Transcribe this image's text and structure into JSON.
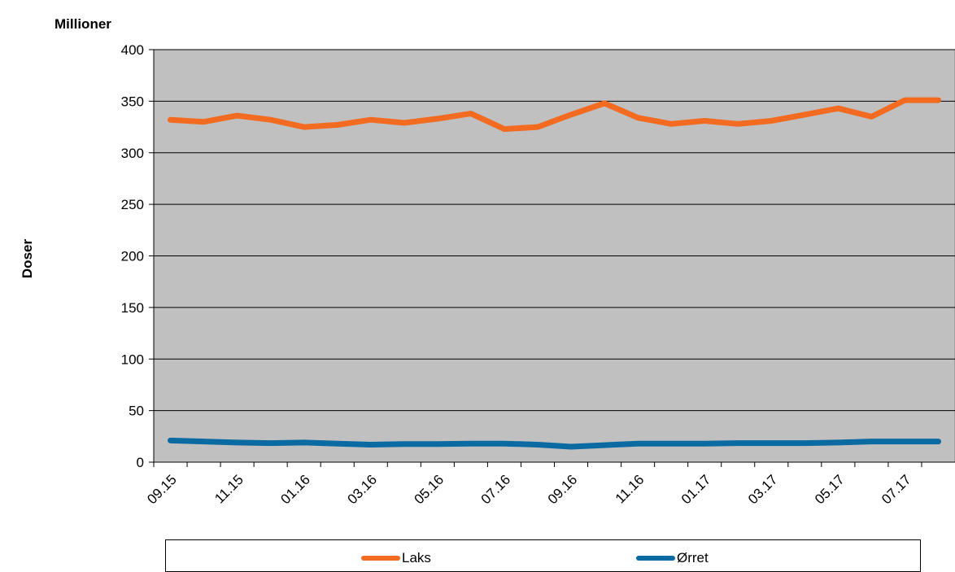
{
  "chart_data": {
    "type": "line",
    "unit_label": "Millioner",
    "ylabel": "Doser",
    "xlabel": "",
    "ylim": [
      0,
      400
    ],
    "yticks": [
      0,
      50,
      100,
      150,
      200,
      250,
      300,
      350,
      400
    ],
    "grid": true,
    "legend_position": "bottom",
    "categories": [
      "09.15",
      "10.15",
      "11.15",
      "12.15",
      "01.16",
      "02.16",
      "03.16",
      "04.16",
      "05.16",
      "06.16",
      "07.16",
      "08.16",
      "09.16",
      "10.16",
      "11.16",
      "12.16",
      "01.17",
      "02.17",
      "03.17",
      "04.17",
      "05.17",
      "06.17",
      "07.17",
      "08.17"
    ],
    "tick_labels": [
      "09.15",
      "11.15",
      "01.16",
      "03.16",
      "05.16",
      "07.16",
      "09.16",
      "11.16",
      "01.17",
      "03.17",
      "05.17",
      "07.17"
    ],
    "series": [
      {
        "name": "Laks",
        "color": "#f26b21",
        "values": [
          332,
          330,
          336,
          332,
          325,
          327,
          332,
          329,
          333,
          338,
          323,
          325,
          337,
          348,
          334,
          328,
          331,
          328,
          331,
          337,
          343,
          335,
          351,
          351
        ]
      },
      {
        "name": "Ørret",
        "color": "#0a6aa1",
        "values": [
          21,
          20,
          19,
          18.5,
          19,
          18,
          17,
          17.5,
          17.5,
          18,
          18,
          17,
          15,
          16.5,
          18,
          18,
          18,
          18.5,
          18.5,
          18.5,
          19,
          20,
          20,
          20
        ]
      }
    ]
  }
}
